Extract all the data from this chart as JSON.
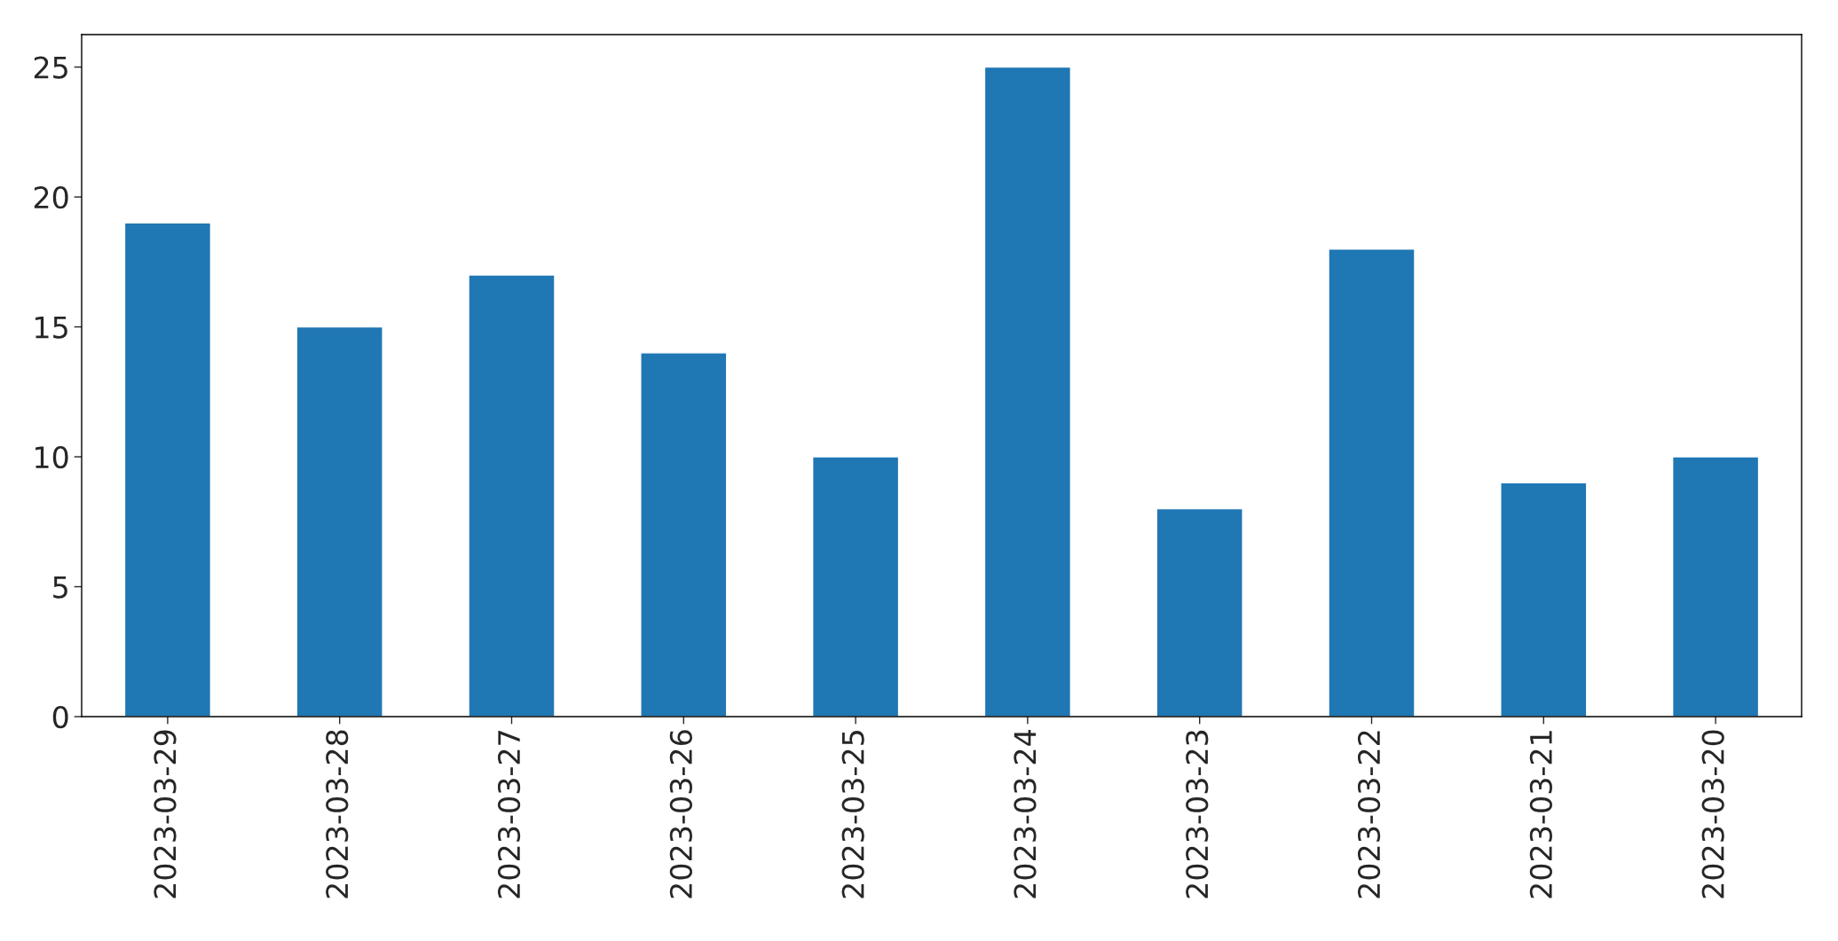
{
  "chart_data": {
    "type": "bar",
    "categories": [
      "2023-03-29",
      "2023-03-28",
      "2023-03-27",
      "2023-03-26",
      "2023-03-25",
      "2023-03-24",
      "2023-03-23",
      "2023-03-22",
      "2023-03-21",
      "2023-03-20"
    ],
    "values": [
      19,
      15,
      17,
      14,
      10,
      25,
      8,
      18,
      9,
      10
    ],
    "color": "#1f77b4",
    "ylim": [
      0,
      26.25
    ],
    "yticks": [
      0,
      5,
      10,
      15,
      20,
      25
    ],
    "grid": false
  }
}
